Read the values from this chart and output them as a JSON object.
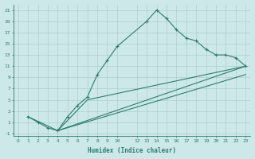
{
  "xlabel": "Humidex (Indice chaleur)",
  "bg_color": "#cce8e8",
  "line_color": "#2d7d6e",
  "grid_color": "#a8c8c8",
  "xlim": [
    -0.5,
    23.5
  ],
  "ylim": [
    -1.5,
    22
  ],
  "xtick_labels": [
    "0",
    "1",
    "2",
    "3",
    "4",
    "5",
    "6",
    "7",
    "8",
    "9",
    "10",
    "12",
    "13",
    "14",
    "15",
    "16",
    "17",
    "18",
    "19",
    "20",
    "21",
    "22",
    "23"
  ],
  "xtick_vals": [
    0,
    1,
    2,
    3,
    4,
    5,
    6,
    7,
    8,
    9,
    10,
    12,
    13,
    14,
    15,
    16,
    17,
    18,
    19,
    20,
    21,
    22,
    23
  ],
  "ytick_labels": [
    "21",
    "19",
    "17",
    "15",
    "13",
    "11",
    "9",
    "7",
    "5",
    "3",
    "1",
    "-1"
  ],
  "ytick_vals": [
    21,
    19,
    17,
    15,
    13,
    11,
    9,
    7,
    5,
    3,
    1,
    -1
  ],
  "line1_x": [
    1,
    2,
    3,
    4,
    5,
    6,
    7,
    8,
    9,
    10,
    13,
    14,
    15,
    16,
    17,
    18,
    19,
    20,
    21,
    22,
    23
  ],
  "line1_y": [
    2,
    1,
    0,
    -0.5,
    2,
    4,
    5.5,
    9.5,
    12,
    14.5,
    19,
    21,
    19.5,
    17.5,
    16,
    15.5,
    14,
    13,
    13,
    12.5,
    11
  ],
  "line2_x": [
    1,
    4,
    23
  ],
  "line2_y": [
    2,
    -0.5,
    11
  ],
  "line3_x": [
    4,
    7,
    23
  ],
  "line3_y": [
    -0.5,
    5,
    11
  ],
  "line4_x": [
    4,
    23
  ],
  "line4_y": [
    -0.5,
    9.5
  ]
}
